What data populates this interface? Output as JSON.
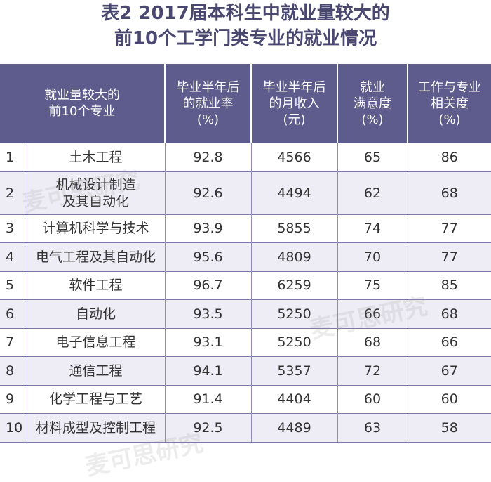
{
  "title": {
    "line1": "表2 2017届本科生中就业量较大的",
    "line2": "前10个工学门类专业的就业情况"
  },
  "headers": [
    [
      "就业量较大的",
      "前10个专业"
    ],
    [
      "毕业半年后",
      "的就业率",
      "(%)"
    ],
    [
      "毕业半年后",
      "的月收入",
      "(元)"
    ],
    [
      "就业",
      "满意度",
      "(%)"
    ],
    [
      "工作与专业",
      "相关度",
      "(%)"
    ]
  ],
  "rows": [
    {
      "idx": "1",
      "name": [
        "土木工程"
      ],
      "rate": "92.8",
      "income": "4566",
      "satisfaction": "65",
      "relevance": "86"
    },
    {
      "idx": "2",
      "name": [
        "机械设计制造",
        "及其自动化"
      ],
      "rate": "92.6",
      "income": "4494",
      "satisfaction": "62",
      "relevance": "68"
    },
    {
      "idx": "3",
      "name": [
        "计算机科学与技术"
      ],
      "rate": "93.9",
      "income": "5855",
      "satisfaction": "74",
      "relevance": "77"
    },
    {
      "idx": "4",
      "name": [
        "电气工程及其自动化"
      ],
      "rate": "95.6",
      "income": "4809",
      "satisfaction": "70",
      "relevance": "77"
    },
    {
      "idx": "5",
      "name": [
        "软件工程"
      ],
      "rate": "96.7",
      "income": "6259",
      "satisfaction": "75",
      "relevance": "85"
    },
    {
      "idx": "6",
      "name": [
        "自动化"
      ],
      "rate": "93.5",
      "income": "5250",
      "satisfaction": "66",
      "relevance": "68"
    },
    {
      "idx": "7",
      "name": [
        "电子信息工程"
      ],
      "rate": "93.1",
      "income": "5250",
      "satisfaction": "68",
      "relevance": "66"
    },
    {
      "idx": "8",
      "name": [
        "通信工程"
      ],
      "rate": "94.1",
      "income": "5357",
      "satisfaction": "72",
      "relevance": "67"
    },
    {
      "idx": "9",
      "name": [
        "化学工程与工艺"
      ],
      "rate": "91.4",
      "income": "4404",
      "satisfaction": "60",
      "relevance": "60"
    },
    {
      "idx": "10",
      "name": [
        "材料成型及控制工程"
      ],
      "rate": "92.5",
      "income": "4489",
      "satisfaction": "63",
      "relevance": "58"
    }
  ],
  "watermark": "麦可思研究",
  "colors": {
    "title": "#4a4870",
    "header_bg": "#5e5c8c",
    "row_stripe": "#eeedf6"
  }
}
